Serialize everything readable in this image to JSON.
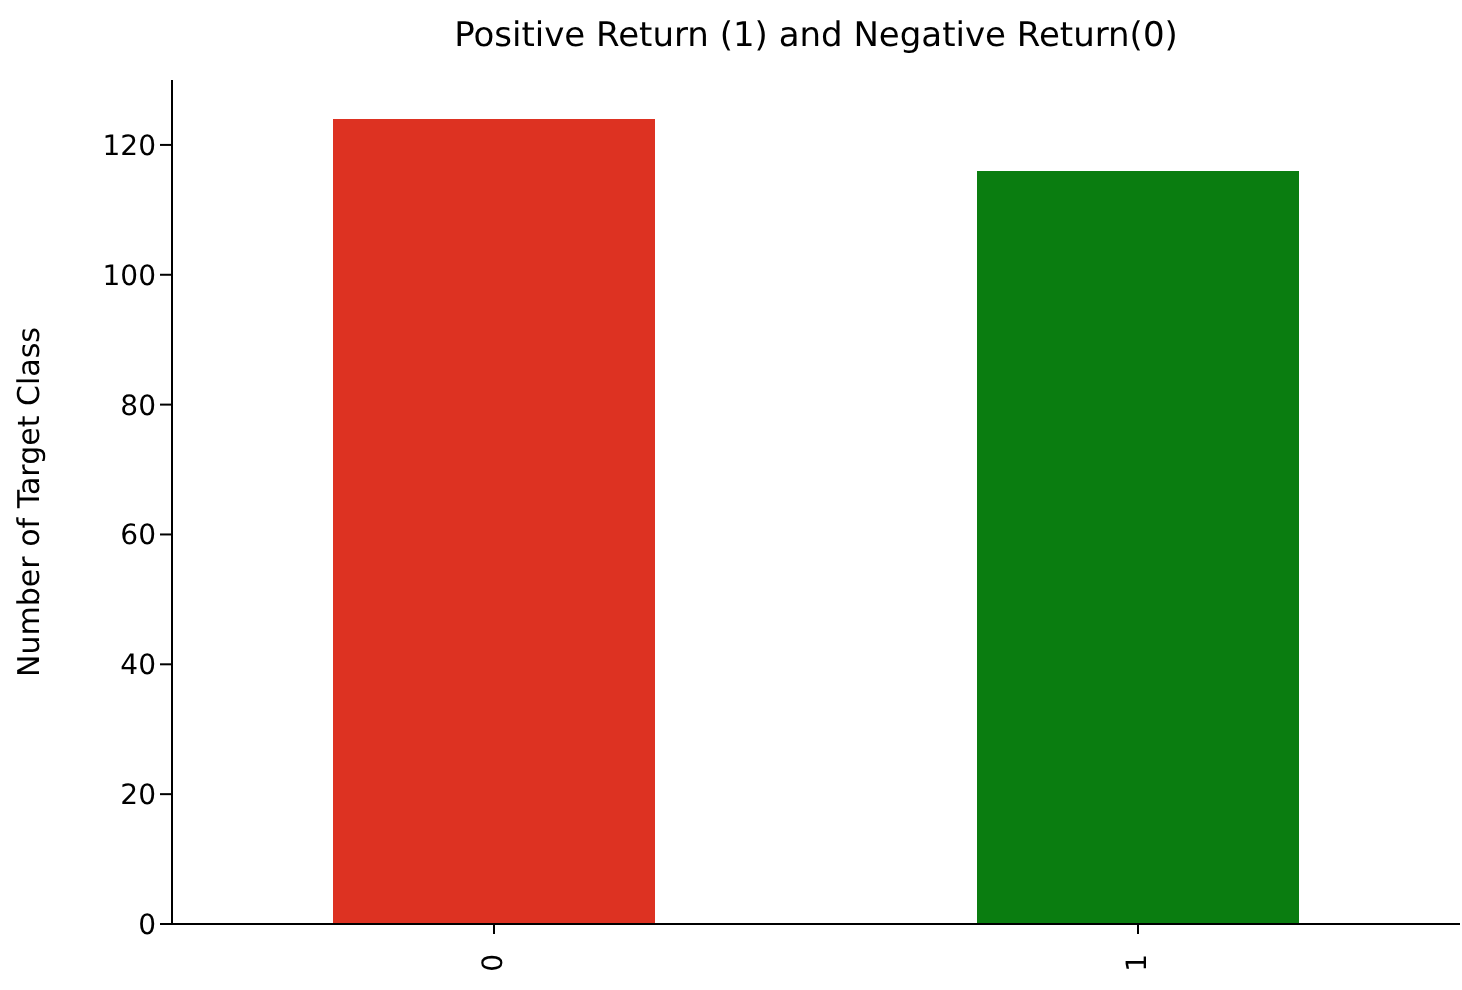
{
  "chart_data": {
    "type": "bar",
    "title": "Positive Return (1) and  Negative Return(0)",
    "ylabel": "Number of Target Class",
    "categories": [
      "0",
      "1"
    ],
    "values": [
      124,
      116
    ],
    "colors": [
      "#dd3222",
      "#0a7d10"
    ],
    "ylim": [
      0,
      130
    ],
    "yticks": [
      0,
      20,
      40,
      60,
      80,
      100,
      120
    ],
    "grid": false,
    "legend": false
  }
}
